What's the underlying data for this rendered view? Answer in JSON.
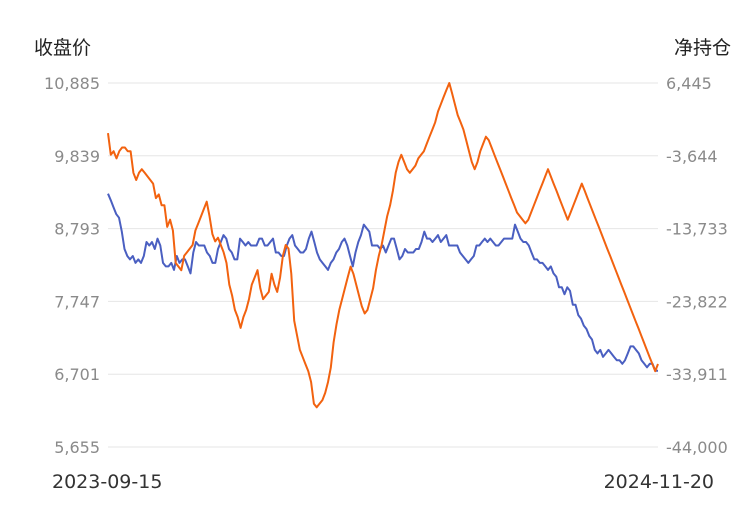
{
  "chart_data": {
    "type": "line",
    "left_axis_title": "收盘价",
    "right_axis_title": "净持仓",
    "left_ticks": [
      "10,885",
      "9,839",
      "8,793",
      "7,747",
      "6,701",
      "5,655"
    ],
    "right_ticks": [
      "6,445",
      "-3,644",
      "-13,733",
      "-23,822",
      "-33,911",
      "-44,000"
    ],
    "left_ylim": [
      5655,
      10885
    ],
    "right_ylim": [
      -44000,
      6445
    ],
    "start_date": "2023-09-15",
    "end_date": "2024-11-20",
    "grid": true,
    "legend": "none",
    "colors": {
      "close": "#4a5fc1",
      "net_position": "#f2620f"
    },
    "series": [
      {
        "key": "close",
        "values": [
          9295,
          9200,
          9100,
          9000,
          8950,
          8750,
          8500,
          8400,
          8350,
          8400,
          8300,
          8350,
          8300,
          8400,
          8600,
          8550,
          8600,
          8500,
          8650,
          8550,
          8300,
          8250,
          8250,
          8300,
          8200,
          8400,
          8300,
          8350,
          8350,
          8250,
          8150,
          8450,
          8600,
          8550,
          8550,
          8550,
          8450,
          8400,
          8300,
          8300,
          8500,
          8600,
          8700,
          8650,
          8500,
          8450,
          8350,
          8350,
          8650,
          8600,
          8550,
          8600,
          8550,
          8550,
          8550,
          8650,
          8650,
          8550,
          8550,
          8600,
          8650,
          8450,
          8450,
          8400,
          8400,
          8550,
          8650,
          8700,
          8550,
          8500,
          8450,
          8450,
          8500,
          8650,
          8750,
          8600,
          8450,
          8350,
          8300,
          8250,
          8200,
          8300,
          8350,
          8450,
          8500,
          8600,
          8650,
          8550,
          8400,
          8250,
          8450,
          8600,
          8700,
          8850,
          8800,
          8750,
          8550,
          8550,
          8550,
          8500,
          8550,
          8450,
          8550,
          8650,
          8650,
          8500,
          8350,
          8400,
          8500,
          8450,
          8450,
          8450,
          8500,
          8500,
          8600,
          8750,
          8650,
          8650,
          8600,
          8650,
          8700,
          8600,
          8650,
          8700,
          8550,
          8550,
          8550,
          8550,
          8450,
          8400,
          8350,
          8300,
          8350,
          8400,
          8550,
          8550,
          8600,
          8650,
          8600,
          8650,
          8600,
          8550,
          8550,
          8600,
          8650,
          8650,
          8650,
          8650,
          8850,
          8750,
          8650,
          8600,
          8600,
          8550,
          8450,
          8350,
          8350,
          8300,
          8300,
          8250,
          8200,
          8250,
          8150,
          8100,
          7950,
          7950,
          7850,
          7950,
          7900,
          7700,
          7700,
          7550,
          7500,
          7400,
          7350,
          7250,
          7200,
          7050,
          7000,
          7050,
          6950,
          7000,
          7050,
          7000,
          6950,
          6900,
          6900,
          6850,
          6900,
          7000,
          7100,
          7100,
          7050,
          7000,
          6900,
          6850,
          6800,
          6850,
          6850,
          6750,
          6750
        ]
      },
      {
        "key": "net_position",
        "values": [
          -500,
          -3500,
          -3000,
          -4000,
          -3000,
          -2500,
          -2500,
          -3000,
          -3000,
          -6000,
          -7000,
          -6000,
          -5500,
          -6000,
          -6500,
          -7000,
          -7500,
          -9500,
          -9000,
          -10500,
          -10500,
          -13500,
          -12500,
          -14000,
          -18500,
          -19000,
          -19500,
          -17500,
          -17000,
          -16500,
          -16000,
          -14000,
          -13000,
          -12000,
          -11000,
          -10000,
          -12000,
          -14500,
          -15500,
          -15000,
          -16000,
          -17000,
          -18500,
          -21500,
          -23000,
          -25000,
          -26000,
          -27500,
          -26000,
          -25000,
          -23500,
          -21500,
          -20500,
          -19500,
          -22000,
          -23500,
          -23000,
          -22500,
          -20000,
          -21500,
          -22500,
          -20500,
          -17500,
          -16000,
          -16500,
          -20000,
          -26500,
          -28500,
          -30500,
          -31500,
          -32500,
          -33500,
          -35000,
          -38000,
          -38500,
          -38000,
          -37500,
          -36500,
          -35000,
          -33000,
          -29500,
          -27000,
          -25000,
          -23500,
          -22000,
          -20500,
          -19000,
          -20000,
          -21500,
          -23000,
          -24500,
          -25500,
          -25000,
          -23500,
          -22000,
          -19500,
          -17500,
          -16000,
          -14000,
          -12000,
          -10500,
          -8500,
          -6000,
          -4500,
          -3500,
          -4500,
          -5500,
          -6000,
          -5500,
          -5000,
          -4000,
          -3500,
          -3000,
          -2000,
          -1000,
          0,
          1000,
          2500,
          3500,
          4500,
          5500,
          6445,
          5000,
          3500,
          2000,
          1000,
          0,
          -1500,
          -3000,
          -4500,
          -5500,
          -4500,
          -3000,
          -2000,
          -1000,
          -1500,
          -2500,
          -3500,
          -4500,
          -5500,
          -6500,
          -7500,
          -8500,
          -9500,
          -10500,
          -11500,
          -12000,
          -12500,
          -13000,
          -12500,
          -11500,
          -10500,
          -9500,
          -8500,
          -7500,
          -6500,
          -5500,
          -6500,
          -7500,
          -8500,
          -9500,
          -10500,
          -11500,
          -12500,
          -11500,
          -10500,
          -9500,
          -8500,
          -7500,
          -8500,
          -9500,
          -10500,
          -11500,
          -12500,
          -13500,
          -14500,
          -15500,
          -16500,
          -17500,
          -18500,
          -19500,
          -20500,
          -21500,
          -22500,
          -23500,
          -24500,
          -25500,
          -26500,
          -27500,
          -28500,
          -29500,
          -30500,
          -31500,
          -32500,
          -33500,
          -32500
        ]
      }
    ]
  }
}
